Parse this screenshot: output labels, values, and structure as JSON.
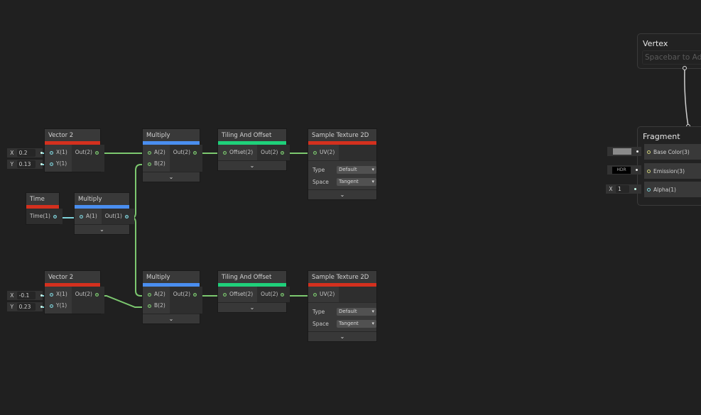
{
  "colors": {
    "input_header": "#d4301e",
    "math_header": "#4a8ef0",
    "uv_header": "#1fd07a",
    "texture_header": "#d4301e",
    "vec2_wire": "#7cc86f",
    "float_wire": "#7fd3db",
    "vec3_wire": "#cfd07a"
  },
  "nodes": [
    {
      "id": "vector2-top",
      "title": "Vector 2",
      "color": "#d4301e",
      "inputs": [
        "X(1)",
        "Y(1)"
      ],
      "outputs": [
        "Out(2)"
      ],
      "collapse": false
    },
    {
      "id": "multiply-top",
      "title": "Multiply",
      "color": "#4a8ef0",
      "inputs": [
        "A(2)",
        "B(2)"
      ],
      "outputs": [
        "Out(2)"
      ],
      "collapse": true
    },
    {
      "id": "tiling-top",
      "title": "Tiling And Offset",
      "color": "#1fd07a",
      "inputs": [
        "Offset(2)"
      ],
      "outputs": [
        "Out(2)"
      ],
      "collapse": true
    },
    {
      "id": "sample-top",
      "title": "Sample Texture 2D",
      "color": "#d4301e",
      "inputs": [
        "UV(2)"
      ],
      "outputs": [],
      "collapse": true,
      "props": [
        {
          "label": "Type",
          "value": "Default"
        },
        {
          "label": "Space",
          "value": "Tangent"
        }
      ]
    },
    {
      "id": "time",
      "title": "Time",
      "color": "#d4301e",
      "inputs": [],
      "outputs": [
        "Time(1)"
      ],
      "collapse": false
    },
    {
      "id": "multiply-time",
      "title": "Multiply",
      "color": "#4a8ef0",
      "inputs": [
        "A(1)"
      ],
      "outputs": [
        "Out(1)"
      ],
      "collapse": true
    },
    {
      "id": "vector2-bottom",
      "title": "Vector 2",
      "color": "#d4301e",
      "inputs": [
        "X(1)",
        "Y(1)"
      ],
      "outputs": [
        "Out(2)"
      ],
      "collapse": false
    },
    {
      "id": "multiply-bottom",
      "title": "Multiply",
      "color": "#4a8ef0",
      "inputs": [
        "A(2)",
        "B(2)"
      ],
      "outputs": [
        "Out(2)"
      ],
      "collapse": true
    },
    {
      "id": "tiling-bottom",
      "title": "Tiling And Offset",
      "color": "#1fd07a",
      "inputs": [
        "Offset(2)"
      ],
      "outputs": [
        "Out(2)"
      ],
      "collapse": true
    },
    {
      "id": "sample-bottom",
      "title": "Sample Texture 2D",
      "color": "#d4301e",
      "inputs": [
        "UV(2)"
      ],
      "outputs": [],
      "collapse": true,
      "props": [
        {
          "label": "Type",
          "value": "Default"
        },
        {
          "label": "Space",
          "value": "Tangent"
        }
      ]
    }
  ],
  "inline_fields": [
    {
      "axis": "X",
      "value": "0.2"
    },
    {
      "axis": "Y",
      "value": "0.13"
    },
    {
      "axis": "X",
      "value": "-0.1"
    },
    {
      "axis": "Y",
      "value": "0.23"
    }
  ],
  "vertex": {
    "title": "Vertex",
    "hint": "Spacebar to Add"
  },
  "fragment": {
    "title": "Fragment",
    "blocks": [
      {
        "label": "Base Color(3)",
        "input": "color-swatch",
        "swatch": "#8a8a8a"
      },
      {
        "label": "Emission(3)",
        "input": "HDR"
      },
      {
        "label": "Alpha(1)",
        "input": "X",
        "value": "1"
      }
    ]
  }
}
